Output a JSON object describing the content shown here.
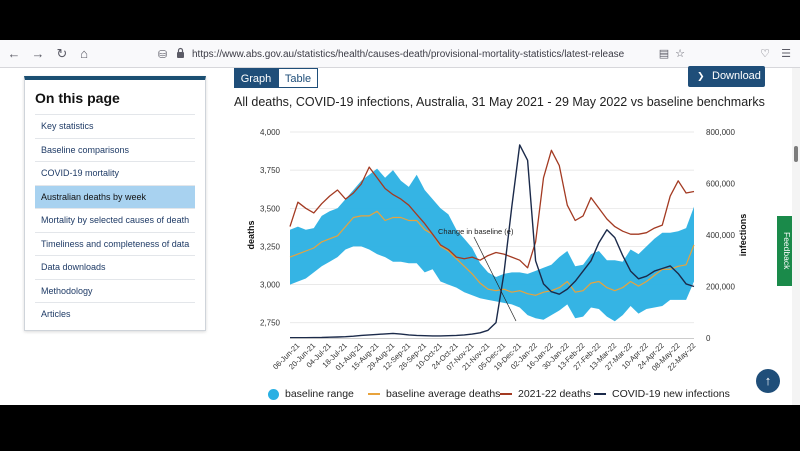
{
  "browser": {
    "url": "https://www.abs.gov.au/statistics/health/causes-death/provisional-mortality-statistics/latest-release"
  },
  "sidebar": {
    "title": "On this page",
    "items": [
      {
        "label": "Key statistics",
        "active": false
      },
      {
        "label": "Baseline comparisons",
        "active": false
      },
      {
        "label": "COVID-19 mortality",
        "active": false
      },
      {
        "label": "Australian deaths by week",
        "active": true
      },
      {
        "label": "Mortality by selected causes of death",
        "active": false
      },
      {
        "label": "Timeliness and completeness of data",
        "active": false
      },
      {
        "label": "Data downloads",
        "active": false
      },
      {
        "label": "Methodology",
        "active": false
      },
      {
        "label": "Articles",
        "active": false
      }
    ]
  },
  "toolbar": {
    "graph_label": "Graph",
    "table_label": "Table",
    "download_label": "Download"
  },
  "feedback_label": "Feedback",
  "chart_data": {
    "type": "line",
    "title": "All deaths, COVID-19 infections, Australia, 31 May 2021 - 29 May 2022 vs baseline benchmarks",
    "ylabel": "deaths",
    "y2label": "infections",
    "ylim": [
      2650,
      4000
    ],
    "y2lim": [
      0,
      800000
    ],
    "yticks": [
      "2,750",
      "3,000",
      "3,250",
      "3,500",
      "3,750",
      "4,000"
    ],
    "y2ticks": [
      "0",
      "200,000",
      "400,000",
      "600,000",
      "800,000"
    ],
    "x_tick_labels": [
      "06-Jun-21",
      "20-Jun-21",
      "04-Jul-21",
      "18-Jul-21",
      "01-Aug-21",
      "15-Aug-21",
      "29-Aug-21",
      "12-Sep-21",
      "26-Sep-21",
      "10-Oct-21",
      "24-Oct-21",
      "07-Nov-21",
      "21-Nov-21",
      "05-Dec-21",
      "19-Dec-21",
      "02-Jan-22",
      "16-Jan-22",
      "30-Jan-22",
      "13-Feb-22",
      "27-Feb-22",
      "13-Mar-22",
      "27-Mar-22",
      "10-Apr-22",
      "24-Apr-22",
      "08-May-22",
      "22-May-22"
    ],
    "annotation": "Change in baseline (e)",
    "series": [
      {
        "name": "baseline range",
        "color": "#2ab0e3",
        "lower": [
          3000,
          3020,
          3040,
          3080,
          3120,
          3150,
          3180,
          3230,
          3250,
          3250,
          3230,
          3200,
          3180,
          3150,
          3150,
          3140,
          3140,
          3080,
          3100,
          3020,
          3000,
          2980,
          2950,
          2930,
          2910,
          2900,
          2890,
          2880,
          2870,
          2850,
          2800,
          2780,
          2770,
          2800,
          2830,
          2870,
          2780,
          2790,
          2850,
          2840,
          2790,
          2760,
          2800,
          2860,
          2810,
          2840,
          2850,
          2860,
          2900,
          2900,
          2900,
          3020
        ],
        "upper": [
          3360,
          3380,
          3360,
          3370,
          3450,
          3480,
          3500,
          3560,
          3620,
          3680,
          3720,
          3760,
          3700,
          3750,
          3680,
          3640,
          3720,
          3620,
          3560,
          3500,
          3460,
          3360,
          3300,
          3240,
          3140,
          3080,
          3050,
          3070,
          3080,
          3080,
          3070,
          3090,
          3110,
          3130,
          3180,
          3220,
          3120,
          3130,
          3200,
          3220,
          3160,
          3160,
          3150,
          3230,
          3200,
          3250,
          3300,
          3340,
          3340,
          3350,
          3370,
          3510
        ]
      },
      {
        "name": "baseline average deaths",
        "color": "#e8a33c",
        "values": [
          3180,
          3200,
          3220,
          3240,
          3280,
          3300,
          3320,
          3380,
          3440,
          3450,
          3450,
          3480,
          3420,
          3440,
          3440,
          3420,
          3420,
          3360,
          3330,
          3250,
          3220,
          3170,
          3120,
          3070,
          3010,
          2970,
          2960,
          2970,
          2950,
          2960,
          2940,
          2930,
          2950,
          2960,
          2980,
          3020,
          2950,
          2960,
          3010,
          3020,
          2980,
          2960,
          2980,
          3020,
          2990,
          3020,
          3060,
          3100,
          3100,
          3120,
          3130,
          3260
        ]
      },
      {
        "name": "2021-22 deaths",
        "color": "#a33a22",
        "values": [
          3380,
          3540,
          3500,
          3470,
          3530,
          3580,
          3620,
          3560,
          3600,
          3660,
          3770,
          3700,
          3630,
          3590,
          3560,
          3520,
          3460,
          3400,
          3330,
          3260,
          3230,
          3180,
          3170,
          3180,
          3160,
          3190,
          3210,
          3200,
          3180,
          3160,
          3110,
          3280,
          3700,
          3880,
          3780,
          3520,
          3420,
          3450,
          3570,
          3500,
          3430,
          3380,
          3350,
          3330,
          3330,
          3340,
          3370,
          3390,
          3580,
          3680,
          3600,
          3610
        ]
      },
      {
        "name": "COVID-19 new infections",
        "color": "#1b2a4a",
        "values": [
          1000,
          1000,
          1000,
          1500,
          2000,
          3000,
          4000,
          5000,
          7000,
          10000,
          12000,
          14000,
          16000,
          18000,
          15000,
          12000,
          10000,
          9000,
          8000,
          8000,
          9000,
          10000,
          12000,
          15000,
          20000,
          30000,
          60000,
          250000,
          510000,
          750000,
          690000,
          300000,
          210000,
          180000,
          170000,
          190000,
          220000,
          260000,
          300000,
          370000,
          420000,
          390000,
          320000,
          260000,
          230000,
          240000,
          260000,
          270000,
          280000,
          250000,
          210000,
          200000
        ]
      }
    ]
  }
}
